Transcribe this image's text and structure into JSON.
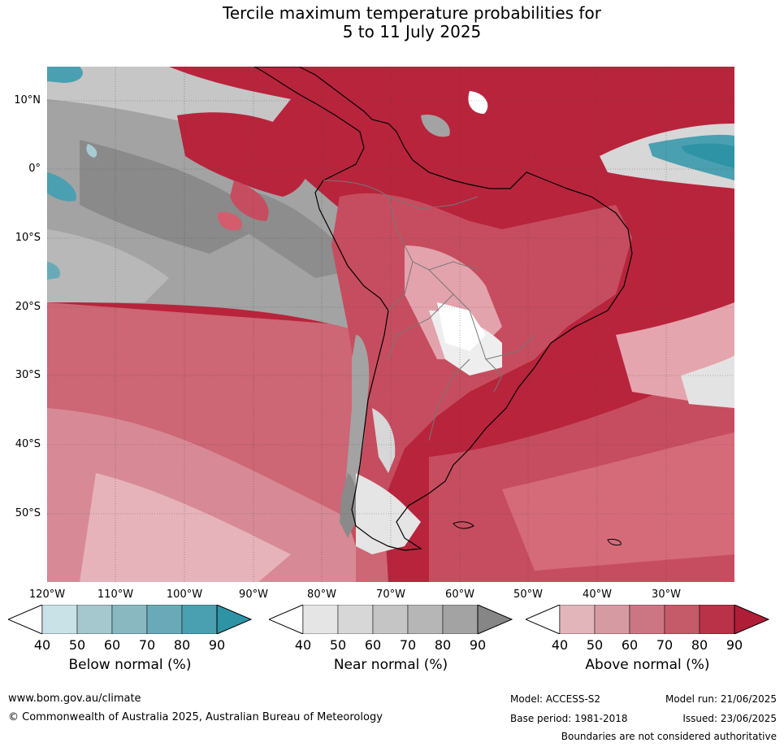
{
  "title_line1": "Tercile maximum temperature probabilities for",
  "title_line2": "5 to 11 July 2025",
  "map": {
    "lat_labels": [
      "10°N",
      "0°",
      "10°S",
      "20°S",
      "30°S",
      "40°S",
      "50°S"
    ],
    "lon_labels": [
      "120°W",
      "110°W",
      "100°W",
      "90°W",
      "80°W",
      "70°W",
      "60°W",
      "50°W",
      "40°W",
      "30°W"
    ],
    "colors": {
      "above": "#b8243c",
      "above_mid": "#d35d6c",
      "above_light": "#e6a9b1",
      "near": "#a3a3a3",
      "near_dark": "#8a8a8a",
      "near_light": "#d7d7d7",
      "below": "#4aa0b0",
      "below_light": "#a8cbd3"
    }
  },
  "colorbars": [
    {
      "title": "Below normal (%)",
      "ticks": [
        "40",
        "50",
        "60",
        "70",
        "80",
        "90"
      ],
      "colors": [
        "#ffffff",
        "#c9e2e8",
        "#a5c7ce",
        "#89b8c1",
        "#6aaab8",
        "#4aa0b0",
        "#2e93a5"
      ]
    },
    {
      "title": "Near normal (%)",
      "ticks": [
        "40",
        "50",
        "60",
        "70",
        "80",
        "90"
      ],
      "colors": [
        "#ffffff",
        "#e5e5e5",
        "#d7d7d7",
        "#c5c5c5",
        "#b6b6b6",
        "#a3a3a3",
        "#868686"
      ]
    },
    {
      "title": "Above normal (%)",
      "ticks": [
        "40",
        "50",
        "60",
        "70",
        "80",
        "90"
      ],
      "colors": [
        "#ffffff",
        "#e2b5bb",
        "#d69aa2",
        "#cd7683",
        "#c55a68",
        "#b93247",
        "#b01d37"
      ]
    }
  ],
  "footer": {
    "site": "www.bom.gov.au/climate",
    "copyright": "© Commonwealth of Australia 2025, Australian Bureau of Meteorology",
    "model": "Model: ACCESS-S2",
    "model_run": "Model run: 21/06/2025",
    "base_period": "Base period: 1981-2018",
    "issued": "Issued: 23/06/2025",
    "disclaimer": "Boundaries are not considered authoritative"
  }
}
